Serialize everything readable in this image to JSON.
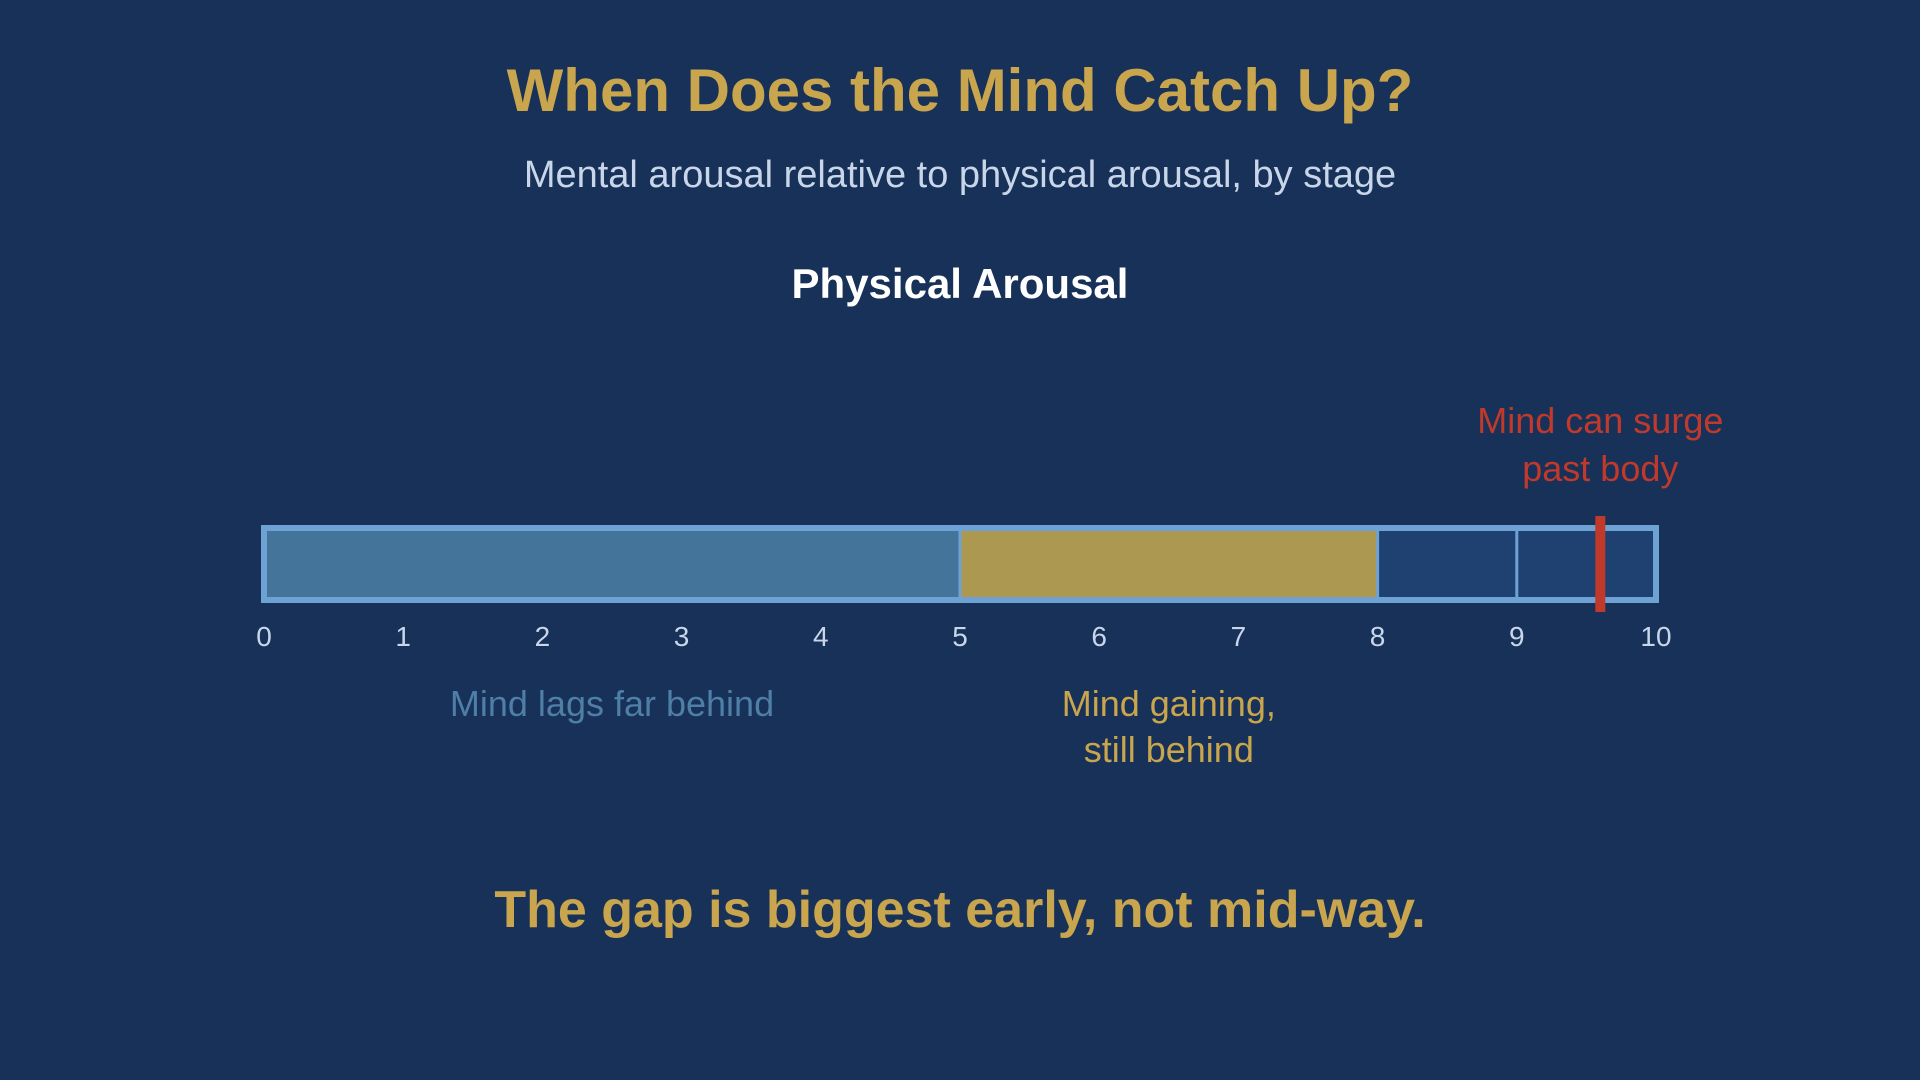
{
  "chart_data": {
    "type": "bar",
    "title": "When Does the Mind Catch Up?",
    "subtitle": "Mental arousal relative to physical arousal, by stage",
    "xlabel": "Physical Arousal",
    "xlim": [
      0,
      10
    ],
    "ticks": [
      "0",
      "1",
      "2",
      "3",
      "4",
      "5",
      "6",
      "7",
      "8",
      "9",
      "10"
    ],
    "segments": [
      {
        "start": 0,
        "end": 5,
        "color": "#45749b",
        "label_lines": [
          "Mind lags far behind"
        ],
        "label_color": "#4f7ea6"
      },
      {
        "start": 5,
        "end": 8,
        "color": "#ad9852",
        "label_lines": [
          "Mind gaining,",
          "still behind"
        ],
        "label_color": "#c9a54e"
      },
      {
        "start": 8,
        "end": 9,
        "color": "#1f4172",
        "label_lines": [],
        "label_color": ""
      },
      {
        "start": 9,
        "end": 10,
        "color": "#1f4172",
        "label_lines": [],
        "label_color": ""
      }
    ],
    "marker": {
      "value": 9.6,
      "color": "#c0392b",
      "label_lines": [
        "Mind can surge",
        "past body"
      ]
    },
    "border_color": "#6fa2d4",
    "tick_color": "#c9d6ea",
    "grid": false,
    "legend": "none"
  },
  "takeaway": "The gap is biggest early, not mid-way."
}
